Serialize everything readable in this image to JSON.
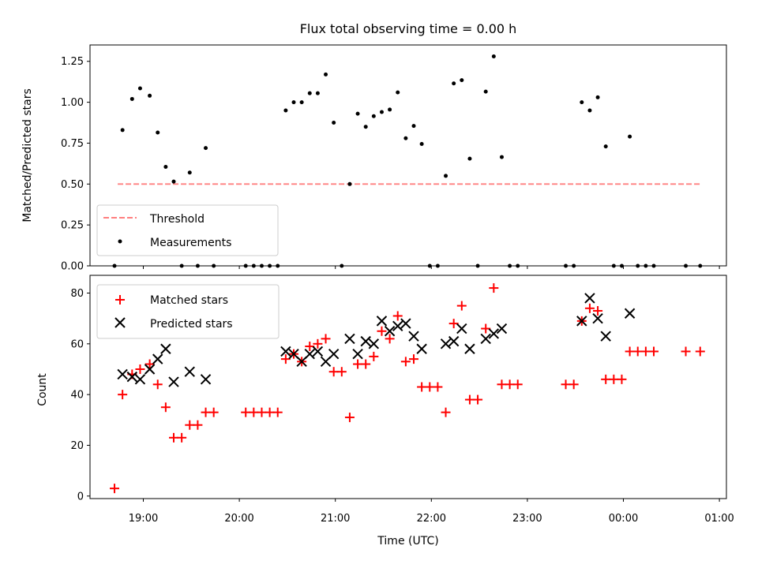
{
  "chart_data": [
    {
      "type": "scatter",
      "title": "Flux total observing time = 0.00 h",
      "ylabel": "Matched/Predicted stars",
      "xlabel": "",
      "ylim": [
        0,
        1.35
      ],
      "yticks": [
        "0.00",
        "0.25",
        "0.50",
        "0.75",
        "1.00",
        "1.25"
      ],
      "legend": {
        "placement": "lower-left",
        "entries": [
          "Threshold",
          "Measurements"
        ]
      },
      "series": [
        {
          "name": "Threshold",
          "style": "dashed-line",
          "color": "#ff7f7f",
          "points": [
            [
              "18:44",
              0.5
            ],
            [
              "00:48",
              0.5
            ]
          ]
        },
        {
          "name": "Measurements",
          "style": "dot",
          "color": "#000000",
          "points": [
            [
              "18:42",
              0.0
            ],
            [
              "18:47",
              0.83
            ],
            [
              "18:53",
              1.02
            ],
            [
              "18:58",
              1.085
            ],
            [
              "19:04",
              1.04
            ],
            [
              "19:09",
              0.815
            ],
            [
              "19:14",
              0.605
            ],
            [
              "19:19",
              0.515
            ],
            [
              "19:24",
              0.0
            ],
            [
              "19:29",
              0.57
            ],
            [
              "19:34",
              0.0
            ],
            [
              "19:39",
              0.72
            ],
            [
              "19:44",
              0.0
            ],
            [
              "20:04",
              0.0
            ],
            [
              "20:09",
              0.0
            ],
            [
              "20:14",
              0.0
            ],
            [
              "20:19",
              0.0
            ],
            [
              "20:24",
              0.0
            ],
            [
              "20:29",
              0.95
            ],
            [
              "20:34",
              1.0
            ],
            [
              "20:39",
              1.0
            ],
            [
              "20:44",
              1.055
            ],
            [
              "20:49",
              1.055
            ],
            [
              "20:54",
              1.17
            ],
            [
              "20:59",
              0.875
            ],
            [
              "21:04",
              0.0
            ],
            [
              "21:09",
              0.5
            ],
            [
              "21:14",
              0.93
            ],
            [
              "21:19",
              0.85
            ],
            [
              "21:24",
              0.915
            ],
            [
              "21:29",
              0.94
            ],
            [
              "21:34",
              0.955
            ],
            [
              "21:39",
              1.06
            ],
            [
              "21:44",
              0.78
            ],
            [
              "21:49",
              0.855
            ],
            [
              "21:54",
              0.745
            ],
            [
              "21:59",
              0.0
            ],
            [
              "22:04",
              0.0
            ],
            [
              "22:09",
              0.55
            ],
            [
              "22:14",
              1.115
            ],
            [
              "22:19",
              1.135
            ],
            [
              "22:24",
              0.655
            ],
            [
              "22:29",
              0.0
            ],
            [
              "22:34",
              1.065
            ],
            [
              "22:39",
              1.28
            ],
            [
              "22:44",
              0.665
            ],
            [
              "22:49",
              0.0
            ],
            [
              "22:54",
              0.0
            ],
            [
              "23:24",
              0.0
            ],
            [
              "23:29",
              0.0
            ],
            [
              "23:34",
              1.0
            ],
            [
              "23:39",
              0.95
            ],
            [
              "23:44",
              1.03
            ],
            [
              "23:49",
              0.73
            ],
            [
              "23:54",
              0.0
            ],
            [
              "23:59",
              0.0
            ],
            [
              "00:04",
              0.79
            ],
            [
              "00:09",
              0.0
            ],
            [
              "00:14",
              0.0
            ],
            [
              "00:19",
              0.0
            ],
            [
              "00:39",
              0.0
            ],
            [
              "00:48",
              0.0
            ]
          ]
        }
      ]
    },
    {
      "type": "scatter",
      "title": "",
      "ylabel": "Count",
      "xlabel": "Time (UTC)",
      "ylim": [
        -1,
        87
      ],
      "yticks": [
        "0",
        "20",
        "40",
        "60",
        "80"
      ],
      "xticks": [
        "19:00",
        "20:00",
        "21:00",
        "22:00",
        "23:00",
        "00:00",
        "01:00"
      ],
      "legend": {
        "placement": "top-left",
        "entries": [
          "Matched stars",
          "Predicted stars"
        ]
      },
      "series": [
        {
          "name": "Matched stars",
          "marker": "plus",
          "color": "#ff0000",
          "points": [
            [
              "18:42",
              3
            ],
            [
              "18:47",
              40
            ],
            [
              "18:53",
              48
            ],
            [
              "18:58",
              50
            ],
            [
              "19:04",
              52
            ],
            [
              "19:09",
              44
            ],
            [
              "19:14",
              35
            ],
            [
              "19:19",
              23
            ],
            [
              "19:24",
              23
            ],
            [
              "19:29",
              28
            ],
            [
              "19:34",
              28
            ],
            [
              "19:39",
              33
            ],
            [
              "19:44",
              33
            ],
            [
              "20:04",
              33
            ],
            [
              "20:09",
              33
            ],
            [
              "20:14",
              33
            ],
            [
              "20:19",
              33
            ],
            [
              "20:24",
              33
            ],
            [
              "20:29",
              54
            ],
            [
              "20:34",
              56
            ],
            [
              "20:39",
              53
            ],
            [
              "20:44",
              59
            ],
            [
              "20:49",
              60
            ],
            [
              "20:54",
              62
            ],
            [
              "20:59",
              49
            ],
            [
              "21:04",
              49
            ],
            [
              "21:09",
              31
            ],
            [
              "21:14",
              52
            ],
            [
              "21:19",
              52
            ],
            [
              "21:24",
              55
            ],
            [
              "21:29",
              65
            ],
            [
              "21:34",
              62
            ],
            [
              "21:39",
              71
            ],
            [
              "21:44",
              53
            ],
            [
              "21:49",
              54
            ],
            [
              "21:54",
              43
            ],
            [
              "21:59",
              43
            ],
            [
              "22:04",
              43
            ],
            [
              "22:09",
              33
            ],
            [
              "22:14",
              68
            ],
            [
              "22:19",
              75
            ],
            [
              "22:24",
              38
            ],
            [
              "22:29",
              38
            ],
            [
              "22:34",
              66
            ],
            [
              "22:39",
              82
            ],
            [
              "22:44",
              44
            ],
            [
              "22:49",
              44
            ],
            [
              "22:54",
              44
            ],
            [
              "23:24",
              44
            ],
            [
              "23:29",
              44
            ],
            [
              "23:34",
              69
            ],
            [
              "23:39",
              74
            ],
            [
              "23:44",
              73
            ],
            [
              "23:49",
              46
            ],
            [
              "23:54",
              46
            ],
            [
              "23:59",
              46
            ],
            [
              "00:04",
              57
            ],
            [
              "00:09",
              57
            ],
            [
              "00:14",
              57
            ],
            [
              "00:19",
              57
            ],
            [
              "00:39",
              57
            ],
            [
              "00:48",
              57
            ]
          ]
        },
        {
          "name": "Predicted stars",
          "marker": "x",
          "color": "#000000",
          "points": [
            [
              "18:47",
              48
            ],
            [
              "18:53",
              47
            ],
            [
              "18:58",
              46
            ],
            [
              "19:04",
              50
            ],
            [
              "19:09",
              54
            ],
            [
              "19:14",
              58
            ],
            [
              "19:19",
              45
            ],
            [
              "19:29",
              49
            ],
            [
              "19:39",
              46
            ],
            [
              "20:29",
              57
            ],
            [
              "20:34",
              56
            ],
            [
              "20:39",
              53
            ],
            [
              "20:44",
              56
            ],
            [
              "20:49",
              57
            ],
            [
              "20:54",
              53
            ],
            [
              "20:59",
              56
            ],
            [
              "21:09",
              62
            ],
            [
              "21:14",
              56
            ],
            [
              "21:19",
              61
            ],
            [
              "21:24",
              60
            ],
            [
              "21:29",
              69
            ],
            [
              "21:34",
              65
            ],
            [
              "21:39",
              67
            ],
            [
              "21:44",
              68
            ],
            [
              "21:49",
              63
            ],
            [
              "21:54",
              58
            ],
            [
              "22:09",
              60
            ],
            [
              "22:14",
              61
            ],
            [
              "22:19",
              66
            ],
            [
              "22:24",
              58
            ],
            [
              "22:34",
              62
            ],
            [
              "22:39",
              64
            ],
            [
              "22:44",
              66
            ],
            [
              "23:34",
              69
            ],
            [
              "23:39",
              78
            ],
            [
              "23:44",
              70
            ],
            [
              "23:49",
              63
            ],
            [
              "00:04",
              72
            ]
          ]
        }
      ]
    }
  ]
}
